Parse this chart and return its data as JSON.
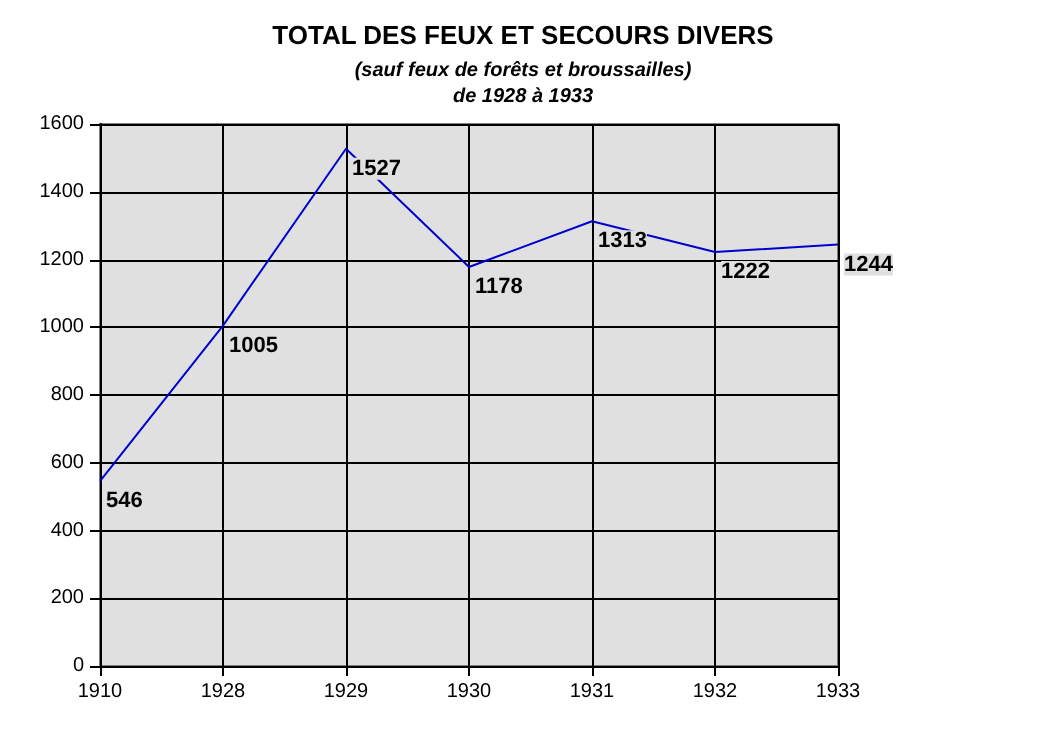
{
  "chart_data": {
    "type": "line",
    "title": "TOTAL DES FEUX ET SECOURS DIVERS",
    "subtitle": "(sauf feux de forêts et broussailles)\nde 1928 à 1933",
    "categories": [
      "1910",
      "1928",
      "1929",
      "1930",
      "1931",
      "1932",
      "1933"
    ],
    "series": [
      {
        "color": "#0000cc",
        "values": [
          546,
          1005,
          1527,
          1178,
          1313,
          1222,
          1244
        ]
      }
    ],
    "ylim": [
      0,
      1600
    ],
    "yticks": [
      0,
      200,
      400,
      600,
      800,
      1000,
      1200,
      1400,
      1600
    ],
    "grid": true,
    "data_labels": true,
    "marker": "none",
    "line_style": "solid"
  }
}
